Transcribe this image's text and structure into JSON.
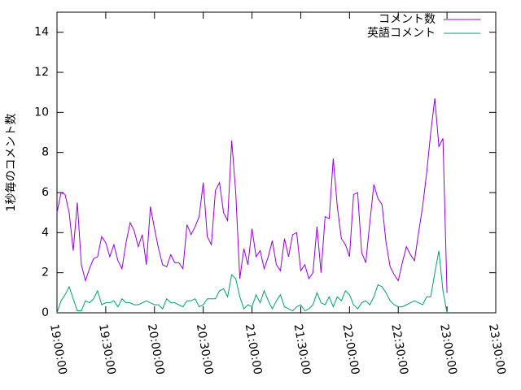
{
  "chart_data": {
    "type": "line",
    "ylabel": "1秒毎のコメント数",
    "x": [
      "19:00:00",
      "19:02:30",
      "19:05:00",
      "19:07:30",
      "19:10:00",
      "19:12:30",
      "19:15:00",
      "19:17:30",
      "19:20:00",
      "19:22:30",
      "19:25:00",
      "19:27:30",
      "19:30:00",
      "19:32:30",
      "19:35:00",
      "19:37:30",
      "19:40:00",
      "19:42:30",
      "19:45:00",
      "19:47:30",
      "19:50:00",
      "19:52:30",
      "19:55:00",
      "19:57:30",
      "20:00:00",
      "20:02:30",
      "20:05:00",
      "20:07:30",
      "20:10:00",
      "20:12:30",
      "20:15:00",
      "20:17:30",
      "20:20:00",
      "20:22:30",
      "20:25:00",
      "20:27:30",
      "20:30:00",
      "20:32:30",
      "20:35:00",
      "20:37:30",
      "20:40:00",
      "20:42:30",
      "20:45:00",
      "20:47:30",
      "20:50:00",
      "20:52:30",
      "20:55:00",
      "20:57:30",
      "21:00:00",
      "21:02:30",
      "21:05:00",
      "21:07:30",
      "21:10:00",
      "21:12:30",
      "21:15:00",
      "21:17:30",
      "21:20:00",
      "21:22:30",
      "21:25:00",
      "21:27:30",
      "21:30:00",
      "21:32:30",
      "21:35:00",
      "21:37:30",
      "21:40:00",
      "21:42:30",
      "21:45:00",
      "21:47:30",
      "21:50:00",
      "21:52:30",
      "21:55:00",
      "21:57:30",
      "22:00:00",
      "22:02:30",
      "22:05:00",
      "22:07:30",
      "22:10:00",
      "22:12:30",
      "22:15:00",
      "22:17:30",
      "22:20:00",
      "22:22:30",
      "22:25:00",
      "22:27:30",
      "22:30:00",
      "22:32:30",
      "22:35:00",
      "22:37:30",
      "22:40:00",
      "22:42:30",
      "22:45:00",
      "22:47:30",
      "22:50:00",
      "22:52:30",
      "22:55:00",
      "22:57:30",
      "23:00:00"
    ],
    "series": [
      {
        "name": "コメント数",
        "color": "#9400d3",
        "values": [
          5.0,
          6.0,
          5.9,
          5.0,
          3.1,
          5.5,
          2.4,
          1.6,
          2.2,
          2.7,
          2.8,
          3.8,
          3.5,
          2.8,
          3.4,
          2.6,
          2.2,
          3.5,
          4.5,
          4.1,
          3.3,
          3.9,
          2.4,
          5.3,
          4.2,
          3.2,
          2.4,
          2.3,
          2.9,
          2.5,
          2.5,
          2.2,
          4.4,
          3.9,
          4.3,
          4.8,
          6.5,
          3.8,
          3.4,
          6.1,
          6.5,
          5.0,
          4.6,
          8.6,
          6.0,
          1.7,
          3.2,
          2.4,
          4.2,
          2.8,
          3.1,
          2.2,
          2.8,
          3.6,
          2.4,
          2.1,
          3.7,
          2.8,
          3.9,
          4.0,
          2.1,
          2.4,
          1.7,
          2.0,
          4.3,
          2.0,
          4.8,
          4.7,
          7.7,
          5.3,
          3.7,
          3.4,
          2.8,
          5.9,
          6.0,
          3.0,
          2.5,
          4.5,
          6.4,
          5.7,
          5.4,
          3.5,
          2.3,
          1.9,
          1.6,
          2.5,
          3.3,
          2.9,
          2.6,
          4.0,
          5.3,
          7.0,
          9.0,
          10.7,
          8.3,
          8.7,
          1.0
        ]
      },
      {
        "name": "英語コメント",
        "color": "#009e73",
        "values": [
          0.0,
          0.6,
          0.9,
          1.3,
          0.7,
          0.1,
          0.1,
          0.6,
          0.5,
          0.7,
          1.1,
          0.4,
          0.5,
          0.5,
          0.6,
          0.3,
          0.7,
          0.5,
          0.5,
          0.4,
          0.4,
          0.5,
          0.6,
          0.5,
          0.4,
          0.4,
          0.2,
          0.7,
          0.5,
          0.5,
          0.4,
          0.3,
          0.6,
          0.6,
          0.7,
          0.3,
          0.4,
          0.7,
          0.7,
          0.7,
          1.1,
          1.2,
          0.8,
          1.9,
          1.7,
          0.8,
          0.2,
          0.4,
          0.3,
          0.9,
          0.5,
          1.1,
          0.6,
          0.2,
          0.6,
          0.9,
          0.3,
          0.2,
          0.1,
          0.3,
          0.4,
          0.1,
          0.2,
          0.4,
          1.0,
          0.5,
          0.4,
          0.8,
          0.3,
          0.8,
          0.6,
          1.1,
          0.9,
          0.4,
          0.2,
          0.5,
          0.6,
          0.4,
          0.8,
          1.4,
          1.3,
          1.0,
          0.6,
          0.4,
          0.3,
          0.3,
          0.4,
          0.5,
          0.6,
          0.5,
          0.4,
          0.8,
          0.8,
          2.0,
          3.1,
          1.1,
          0.0
        ]
      }
    ],
    "xlim": [
      "19:00:00",
      "23:30:00"
    ],
    "xticks": [
      "19:00:00",
      "19:30:00",
      "20:00:00",
      "20:30:00",
      "21:00:00",
      "21:30:00",
      "22:00:00",
      "22:30:00",
      "23:00:00",
      "23:30:00"
    ],
    "ylim": [
      0,
      15
    ],
    "yticks": [
      0,
      2,
      4,
      6,
      8,
      10,
      12,
      14
    ],
    "legend": "upper right"
  }
}
